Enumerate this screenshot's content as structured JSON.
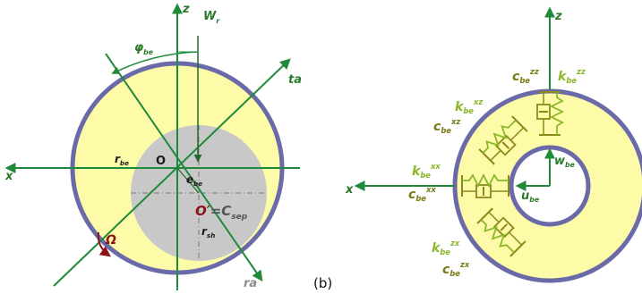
{
  "panel_a": {
    "panel_label": "",
    "axes": {
      "z": "z",
      "x": "x",
      "ta": "ta",
      "ra": "ra"
    },
    "load": {
      "main": "W",
      "sub": "r"
    },
    "angle": {
      "main": "φ",
      "sub": "be"
    },
    "origin": "O",
    "r_be": {
      "main": "r",
      "sub": "be"
    },
    "e_be": {
      "main": "e",
      "sub": "be"
    },
    "r_sh": {
      "main": "r",
      "sub": "sh"
    },
    "rotation": "Ω",
    "center": {
      "o_prime": "O′",
      "equals": "=",
      "c_main": "C",
      "c_sub": "sep"
    }
  },
  "panel_b": {
    "panel_label": "(b)",
    "axes": {
      "z": "z",
      "x": "x"
    },
    "w_be": {
      "main": "w",
      "sub": "be"
    },
    "u_be": {
      "main": "u",
      "sub": "be"
    },
    "c_zz": {
      "main": "c",
      "sub": "be",
      "sup": "zz"
    },
    "k_zz": {
      "main": "k",
      "sub": "be",
      "sup": "zz"
    },
    "k_xz": {
      "main": "k",
      "sub": "be",
      "sup": "xz"
    },
    "c_xz": {
      "main": "c",
      "sub": "be",
      "sup": "xz"
    },
    "k_xx": {
      "main": "k",
      "sub": "be",
      "sup": "xx"
    },
    "c_xx": {
      "main": "c",
      "sub": "be",
      "sup": "xx"
    },
    "k_zx": {
      "main": "k",
      "sub": "be",
      "sup": "zx"
    },
    "c_zx": {
      "main": "c",
      "sub": "be",
      "sup": "zx"
    }
  },
  "colors": {
    "housing_fill": "#fdfaa8",
    "housing_ring": "#6b6aa8",
    "shaft_fill": "#c8c8c8",
    "axis_green": "#1f8a3a",
    "label_green": "#2a7a2a",
    "damper_olive": "#8a8a1a",
    "spring_lime": "#8ab82a",
    "center_red": "#8b1414"
  }
}
